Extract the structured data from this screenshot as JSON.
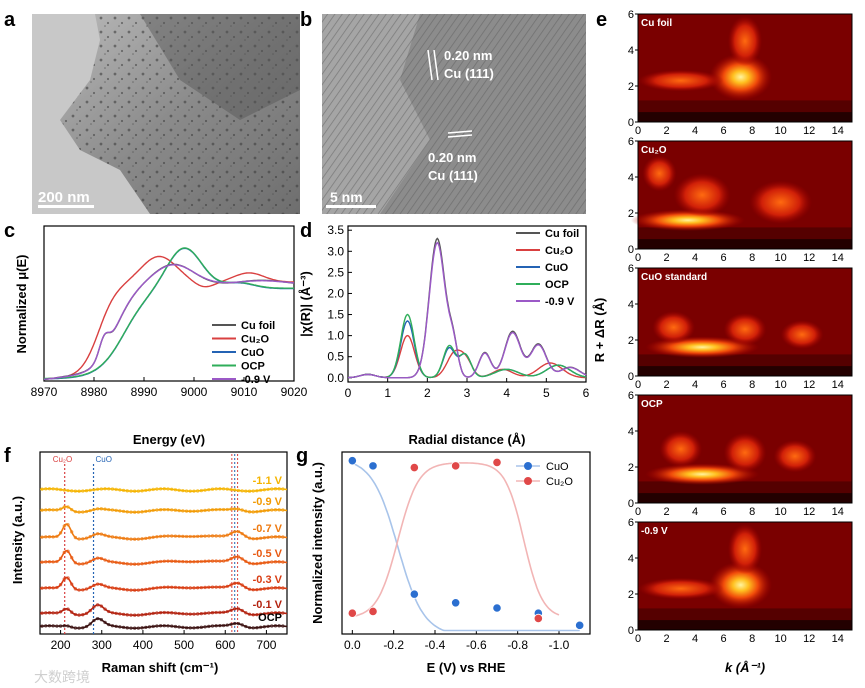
{
  "panel_labels": {
    "a": "a",
    "b": "b",
    "c": "c",
    "d": "d",
    "e": "e",
    "f": "f",
    "g": "g"
  },
  "panel_a": {
    "scale_bar": "200 nm"
  },
  "panel_b": {
    "scale_bar": "5 nm",
    "annotation1": [
      "0.20 nm",
      "Cu (111)"
    ],
    "annotation2": [
      "0.20 nm",
      "Cu (111)"
    ]
  },
  "watermark": "大数跨境",
  "colors": {
    "cu_foil": "#555555",
    "cu2o": "#d94040",
    "cuo": "#2463b4",
    "ocp": "#2fae5a",
    "m09": "#9b59c7",
    "g_cuo": "#2b6fd0",
    "g_cu2o": "#e04848"
  },
  "chart_data": [
    {
      "id": "c",
      "type": "line",
      "xlabel": "Energy (eV)",
      "ylabel": "Normalized μ(E)",
      "xlim": [
        8970,
        9020
      ],
      "xticks": [
        8970,
        8980,
        8990,
        9000,
        9010,
        9020
      ],
      "series": [
        {
          "name": "Cu foil",
          "color": "#555555"
        },
        {
          "name": "Cu₂O",
          "color": "#d94040"
        },
        {
          "name": "CuO",
          "color": "#2463b4"
        },
        {
          "name": "OCP",
          "color": "#2fae5a"
        },
        {
          "name": "-0.9 V",
          "color": "#9b59c7"
        }
      ]
    },
    {
      "id": "d",
      "type": "line",
      "xlabel": "Radial distance (Å)",
      "ylabel": "|χ(R)| (Å⁻³)",
      "xlim": [
        0,
        6
      ],
      "ylim": [
        -0.1,
        3.6
      ],
      "xticks": [
        0,
        1,
        2,
        3,
        4,
        5,
        6
      ],
      "yticks": [
        0.0,
        0.5,
        1.0,
        1.5,
        2.0,
        2.5,
        3.0,
        3.5
      ],
      "series": [
        {
          "name": "Cu foil",
          "color": "#555555"
        },
        {
          "name": "Cu₂O",
          "color": "#d94040"
        },
        {
          "name": "CuO",
          "color": "#2463b4"
        },
        {
          "name": "OCP",
          "color": "#2fae5a"
        },
        {
          "name": "-0.9 V",
          "color": "#9b59c7"
        }
      ]
    },
    {
      "id": "e",
      "type": "heatmap",
      "xlabel": "k (Å⁻¹)",
      "ylabel": "R + ΔR (Å)",
      "xlim": [
        0,
        15
      ],
      "ylim": [
        0,
        6
      ],
      "xticks": [
        0,
        2,
        4,
        6,
        8,
        10,
        12,
        14
      ],
      "yticks": [
        0,
        2,
        4,
        6
      ],
      "subplots": [
        "Cu foil",
        "Cu₂O",
        "CuO standard",
        "OCP",
        "-0.9 V"
      ]
    },
    {
      "id": "f",
      "type": "line",
      "xlabel": "Raman shift (cm⁻¹)",
      "ylabel": "Intensity (a.u.)",
      "xlim": [
        150,
        750
      ],
      "xticks": [
        200,
        300,
        400,
        500,
        600,
        700
      ],
      "markers": [
        {
          "label": "Cu₂O",
          "x": 210
        },
        {
          "label": "CuO",
          "x": 280
        }
      ],
      "series": [
        {
          "name": "-1.1 V",
          "color": "#f5b400"
        },
        {
          "name": "-0.9 V",
          "color": "#f29b05"
        },
        {
          "name": "-0.7 V",
          "color": "#ee7a10"
        },
        {
          "name": "-0.5 V",
          "color": "#e85a12"
        },
        {
          "name": "-0.3 V",
          "color": "#d83c12"
        },
        {
          "name": "-0.1 V",
          "color": "#b3220f"
        },
        {
          "name": "OCP",
          "color": "#3a1010"
        }
      ]
    },
    {
      "id": "g",
      "type": "scatter",
      "xlabel": "E (V) vs RHE",
      "ylabel": "Normalized intensity (a.u.)",
      "xlim": [
        0.05,
        -1.15
      ],
      "ylim": [
        0,
        1.05
      ],
      "xticks": [
        0.0,
        -0.2,
        -0.4,
        -0.6,
        -0.8,
        -1.0
      ],
      "xtick_labels": [
        "0.0",
        "-0.2",
        "-0.4",
        "-0.6",
        "-0.8",
        "-1.0"
      ],
      "series": [
        {
          "name": "CuO",
          "color": "#2b6fd0",
          "x": [
            0.0,
            -0.1,
            -0.3,
            -0.5,
            -0.7,
            -0.9,
            -1.1
          ],
          "y": [
            1.0,
            0.97,
            0.23,
            0.18,
            0.15,
            0.12,
            0.05
          ]
        },
        {
          "name": "Cu₂O",
          "color": "#e04848",
          "x": [
            0.0,
            -0.1,
            -0.3,
            -0.5,
            -0.7,
            -0.9,
            -1.1
          ],
          "y": [
            0.12,
            0.13,
            0.96,
            0.97,
            0.99,
            0.09,
            null
          ]
        }
      ]
    }
  ]
}
